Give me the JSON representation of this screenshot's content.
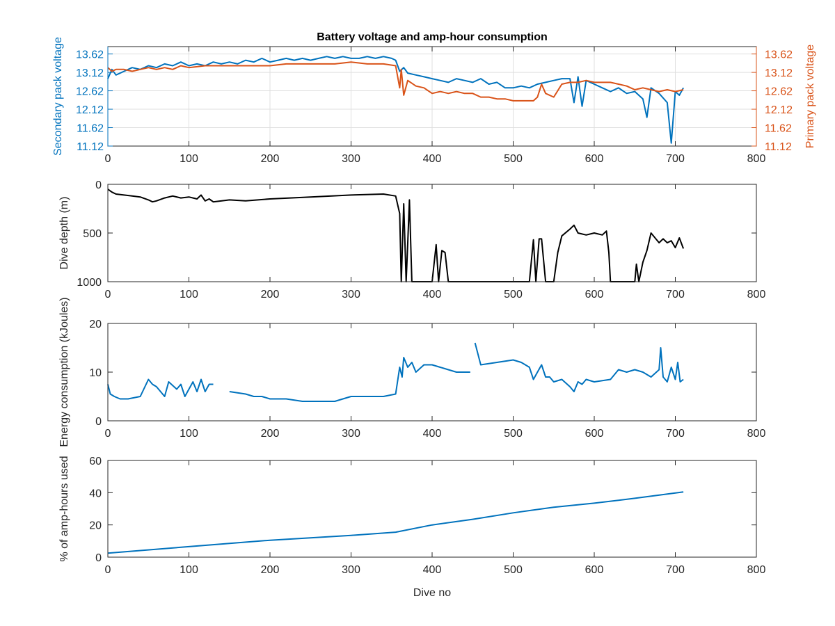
{
  "chart_data": [
    {
      "type": "line",
      "title": "Battery voltage and amp-hour consumption",
      "xlabel": "",
      "ylabel_left": "Secondary pack voltage",
      "ylabel_right": "Primary pack voltage",
      "xlim": [
        0,
        800
      ],
      "ylim": [
        11.12,
        13.82
      ],
      "xticks": [
        0,
        100,
        200,
        300,
        400,
        500,
        600,
        700,
        800
      ],
      "yticks": [
        11.12,
        11.62,
        12.12,
        12.62,
        13.12,
        13.62
      ],
      "grid": true,
      "colors": {
        "left": "#0072BD",
        "right": "#D95319"
      },
      "series": [
        {
          "axis": "left",
          "color": "#0072BD",
          "x": [
            0,
            5,
            10,
            20,
            30,
            40,
            50,
            60,
            70,
            80,
            90,
            100,
            110,
            120,
            130,
            140,
            150,
            160,
            170,
            180,
            190,
            200,
            210,
            220,
            230,
            240,
            250,
            260,
            270,
            280,
            290,
            300,
            310,
            320,
            330,
            340,
            350,
            355,
            360,
            365,
            370,
            380,
            390,
            400,
            410,
            420,
            430,
            440,
            450,
            460,
            470,
            480,
            490,
            500,
            510,
            520,
            530,
            540,
            550,
            560,
            570,
            575,
            580,
            585,
            590,
            600,
            610,
            620,
            630,
            640,
            650,
            660,
            665,
            670,
            680,
            690,
            695,
            700,
            705,
            710
          ],
          "values": [
            12.95,
            13.2,
            13.05,
            13.15,
            13.25,
            13.2,
            13.3,
            13.25,
            13.35,
            13.3,
            13.4,
            13.3,
            13.35,
            13.3,
            13.4,
            13.35,
            13.4,
            13.35,
            13.45,
            13.4,
            13.5,
            13.4,
            13.45,
            13.5,
            13.45,
            13.5,
            13.45,
            13.5,
            13.55,
            13.5,
            13.55,
            13.5,
            13.5,
            13.55,
            13.5,
            13.55,
            13.5,
            13.45,
            13.15,
            13.25,
            13.1,
            13.05,
            13.0,
            12.95,
            12.9,
            12.85,
            12.95,
            12.9,
            12.85,
            12.95,
            12.8,
            12.85,
            12.7,
            12.7,
            12.75,
            12.7,
            12.8,
            12.85,
            12.9,
            12.95,
            12.95,
            12.3,
            13.0,
            12.2,
            12.9,
            12.8,
            12.7,
            12.6,
            12.7,
            12.55,
            12.6,
            12.4,
            11.9,
            12.7,
            12.55,
            12.3,
            11.2,
            12.6,
            12.5,
            12.7
          ]
        },
        {
          "axis": "right",
          "color": "#D95319",
          "x": [
            0,
            5,
            10,
            20,
            30,
            40,
            50,
            60,
            70,
            80,
            90,
            100,
            120,
            140,
            160,
            180,
            200,
            220,
            240,
            260,
            280,
            300,
            320,
            340,
            355,
            360,
            362,
            365,
            370,
            380,
            390,
            400,
            410,
            420,
            430,
            440,
            450,
            460,
            470,
            480,
            490,
            500,
            510,
            520,
            525,
            530,
            535,
            540,
            550,
            560,
            570,
            580,
            590,
            600,
            610,
            620,
            630,
            640,
            650,
            660,
            670,
            680,
            690,
            700,
            710
          ],
          "values": [
            13.25,
            13.15,
            13.2,
            13.2,
            13.15,
            13.2,
            13.25,
            13.2,
            13.25,
            13.2,
            13.3,
            13.25,
            13.3,
            13.3,
            13.3,
            13.3,
            13.3,
            13.35,
            13.35,
            13.35,
            13.35,
            13.4,
            13.35,
            13.35,
            13.3,
            12.7,
            13.2,
            12.5,
            12.9,
            12.75,
            12.7,
            12.55,
            12.6,
            12.55,
            12.6,
            12.55,
            12.55,
            12.45,
            12.45,
            12.4,
            12.4,
            12.35,
            12.35,
            12.35,
            12.35,
            12.45,
            12.8,
            12.55,
            12.45,
            12.8,
            12.85,
            12.85,
            12.9,
            12.85,
            12.85,
            12.85,
            12.8,
            12.75,
            12.65,
            12.7,
            12.65,
            12.6,
            12.65,
            12.6,
            12.65
          ]
        }
      ]
    },
    {
      "type": "line",
      "title": "",
      "xlabel": "",
      "ylabel": "Dive depth (m)",
      "xlim": [
        0,
        800
      ],
      "ylim": [
        0,
        1000
      ],
      "yreversed": true,
      "xticks": [
        0,
        100,
        200,
        300,
        400,
        500,
        600,
        700,
        800
      ],
      "yticks": [
        0,
        500,
        1000
      ],
      "grid": false,
      "series": [
        {
          "color": "#000000",
          "x": [
            0,
            5,
            10,
            20,
            30,
            40,
            50,
            55,
            60,
            70,
            80,
            90,
            100,
            110,
            115,
            120,
            125,
            130,
            150,
            170,
            200,
            250,
            300,
            340,
            355,
            360,
            362,
            365,
            368,
            370,
            372,
            375,
            380,
            400,
            405,
            408,
            412,
            416,
            420,
            450,
            500,
            520,
            525,
            528,
            532,
            535,
            540,
            550,
            555,
            560,
            570,
            575,
            580,
            590,
            600,
            610,
            615,
            618,
            620,
            640,
            650,
            652,
            655,
            660,
            665,
            670,
            680,
            685,
            690,
            695,
            700,
            705,
            710
          ],
          "values": [
            50,
            80,
            100,
            110,
            120,
            130,
            160,
            180,
            170,
            140,
            120,
            140,
            130,
            150,
            110,
            170,
            150,
            180,
            160,
            170,
            150,
            130,
            110,
            100,
            120,
            300,
            1000,
            200,
            1000,
            600,
            160,
            1000,
            1000,
            1000,
            620,
            1000,
            680,
            700,
            1000,
            1000,
            1000,
            1000,
            570,
            1000,
            560,
            560,
            1000,
            1000,
            700,
            530,
            460,
            420,
            500,
            520,
            500,
            520,
            480,
            700,
            1000,
            1000,
            1000,
            820,
            1000,
            800,
            680,
            500,
            600,
            560,
            600,
            580,
            650,
            550,
            660
          ]
        }
      ]
    },
    {
      "type": "line",
      "title": "",
      "xlabel": "",
      "ylabel": "Energy consumption (kJoules)",
      "xlim": [
        0,
        800
      ],
      "ylim": [
        0,
        20
      ],
      "xticks": [
        0,
        100,
        200,
        300,
        400,
        500,
        600,
        700,
        800
      ],
      "yticks": [
        0,
        10,
        20
      ],
      "grid": false,
      "series": [
        {
          "color": "#0072BD",
          "x": [
            0,
            3,
            8,
            15,
            25,
            40,
            50,
            55,
            60,
            70,
            75,
            85,
            90,
            95,
            100,
            105,
            110,
            115,
            120,
            125,
            130,
            135,
            150,
            170,
            180,
            190,
            200,
            220,
            240,
            260,
            280,
            300,
            320,
            340,
            355,
            360,
            363,
            365,
            370,
            375,
            380,
            390,
            400,
            410,
            420,
            430,
            440,
            447,
            452,
            453,
            460,
            480,
            500,
            510,
            520,
            525,
            530,
            535,
            540,
            545,
            550,
            560,
            570,
            575,
            580,
            585,
            590,
            600,
            620,
            630,
            640,
            650,
            660,
            670,
            680,
            682,
            685,
            690,
            695,
            700,
            703,
            706,
            710
          ],
          "values": [
            7.5,
            5.5,
            5.0,
            4.5,
            4.5,
            5.0,
            8.5,
            7.5,
            7.0,
            5.0,
            8.0,
            6.5,
            7.5,
            5.0,
            6.5,
            8.0,
            6.0,
            8.5,
            6.0,
            7.5,
            7.5,
            null,
            6.0,
            5.5,
            5.0,
            5.0,
            4.5,
            4.5,
            4.0,
            4.0,
            4.0,
            5.0,
            5.0,
            5.0,
            5.5,
            11.0,
            9.0,
            13.0,
            11.0,
            12.0,
            10.0,
            11.5,
            11.5,
            11.0,
            10.5,
            10.0,
            10.0,
            10.0,
            null,
            16.0,
            11.5,
            12.0,
            12.5,
            12.0,
            11.0,
            8.5,
            10.0,
            11.5,
            9.0,
            9.0,
            8.0,
            8.5,
            7.0,
            6.0,
            8.0,
            7.5,
            8.5,
            8.0,
            8.5,
            10.5,
            10.0,
            10.5,
            10.0,
            9.0,
            10.5,
            15.0,
            9.0,
            8.0,
            11.0,
            8.5,
            12.0,
            8.0,
            8.5
          ]
        }
      ]
    },
    {
      "type": "line",
      "title": "",
      "xlabel": "Dive no",
      "ylabel": "% of amp-hours used",
      "xlim": [
        0,
        800
      ],
      "ylim": [
        0,
        60
      ],
      "xticks": [
        0,
        100,
        200,
        300,
        400,
        500,
        600,
        700,
        800
      ],
      "yticks": [
        0,
        20,
        40,
        60
      ],
      "grid": false,
      "series": [
        {
          "color": "#0072BD",
          "x": [
            0,
            100,
            200,
            300,
            355,
            400,
            450,
            500,
            550,
            600,
            650,
            710
          ],
          "values": [
            2.5,
            6.5,
            10.5,
            13.5,
            15.5,
            20.0,
            23.5,
            27.5,
            31.0,
            33.5,
            36.5,
            40.5
          ]
        }
      ]
    }
  ]
}
